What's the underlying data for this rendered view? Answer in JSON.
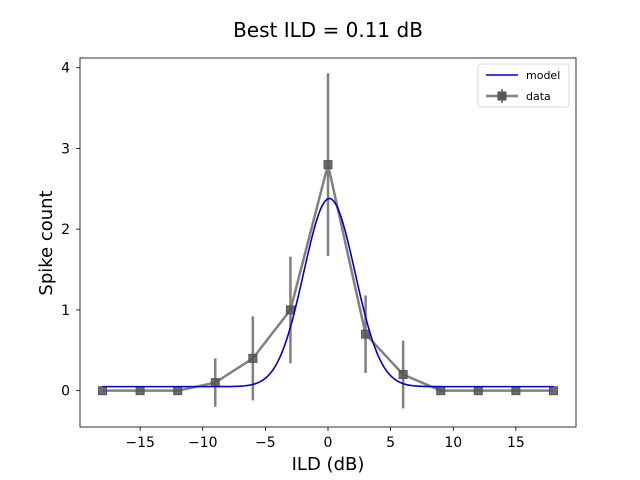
{
  "chart_data": {
    "type": "line",
    "title": "Best ILD = 0.11 dB",
    "xlabel": "ILD (dB)",
    "ylabel": "Spike count",
    "xlim": [
      -19.8,
      19.8
    ],
    "ylim": [
      -0.45,
      4.12
    ],
    "xticks": [
      -15,
      -10,
      -5,
      0,
      5,
      10,
      15
    ],
    "xtick_labels": [
      "−15",
      "−10",
      "−5",
      "0",
      "5",
      "10",
      "15"
    ],
    "yticks": [
      0,
      1,
      2,
      3,
      4
    ],
    "ytick_labels": [
      "0",
      "1",
      "2",
      "3",
      "4"
    ],
    "grid": false,
    "legend": "top-right",
    "series": [
      {
        "name": "model",
        "kind": "line",
        "color": "#0000cc",
        "model": {
          "baseline": 0.05,
          "amplitude": 2.33,
          "center": 0.11,
          "sigma": 2.05
        }
      },
      {
        "name": "data",
        "kind": "errorbar",
        "color": "#808080",
        "x": [
          -18,
          -15,
          -12,
          -9,
          -6,
          -3,
          0,
          3,
          6,
          9,
          12,
          15,
          18
        ],
        "y": [
          0.0,
          0.0,
          0.0,
          0.1,
          0.4,
          1.0,
          2.8,
          0.7,
          0.2,
          0.0,
          0.0,
          0.0,
          0.0
        ],
        "err": [
          0.0,
          0.0,
          0.0,
          0.3,
          0.52,
          0.66,
          1.13,
          0.48,
          0.42,
          0.0,
          0.0,
          0.0,
          0.0
        ]
      }
    ]
  }
}
